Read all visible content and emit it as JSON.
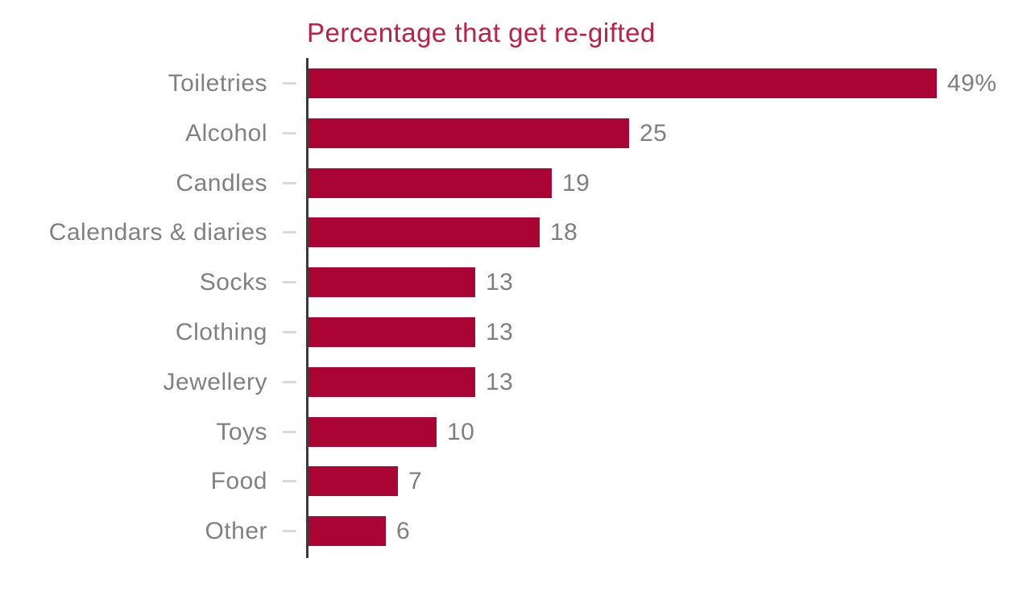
{
  "chart_data": {
    "type": "bar",
    "orientation": "horizontal",
    "title": "Percentage that get re-gifted",
    "categories": [
      "Toiletries",
      "Alcohol",
      "Candles",
      "Calendars & diaries",
      "Socks",
      "Clothing",
      "Jewellery",
      "Toys",
      "Food",
      "Other"
    ],
    "values": [
      49,
      25,
      19,
      18,
      13,
      13,
      13,
      10,
      7,
      6
    ],
    "value_labels": [
      "49%",
      "25",
      "19",
      "18",
      "13",
      "13",
      "13",
      "10",
      "7",
      "6"
    ],
    "unit": "percent",
    "xlim": [
      0,
      56
    ],
    "grid": false,
    "legend": "none",
    "value_labels_position": "end-of-bar",
    "colors": {
      "bar": "#a90433",
      "title": "#be2045",
      "category_label": "#808080",
      "value_label": "#7f7f7f",
      "axis_line": "#3a3a3a",
      "tick": "#d9d9d9",
      "background": "#ffffff"
    }
  }
}
